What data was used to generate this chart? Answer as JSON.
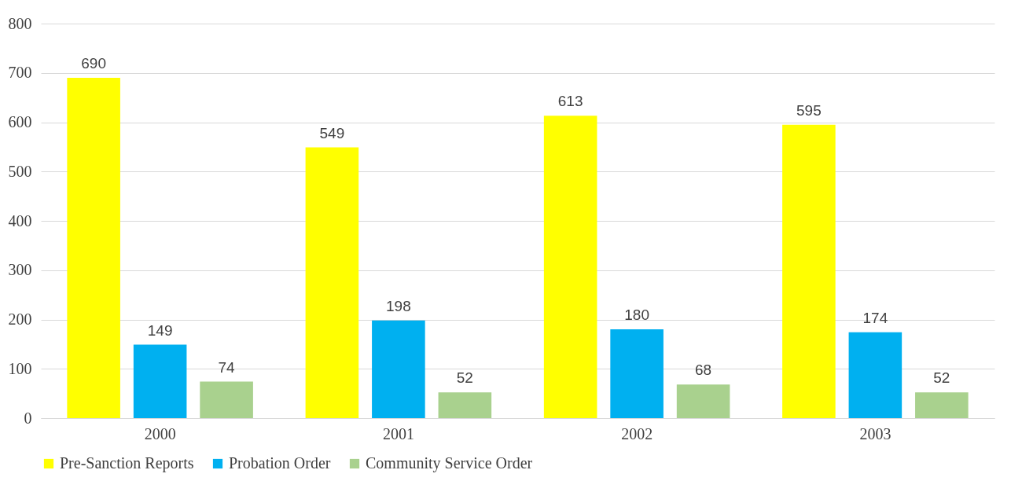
{
  "chart_data": {
    "type": "bar",
    "categories": [
      "2000",
      "2001",
      "2002",
      "2003"
    ],
    "series": [
      {
        "name": "Pre-Sanction Reports",
        "color": "#ffff00",
        "values": [
          690,
          549,
          613,
          595
        ]
      },
      {
        "name": "Probation Order",
        "color": "#00b0f0",
        "values": [
          149,
          198,
          180,
          174
        ]
      },
      {
        "name": "Community Service Order",
        "color": "#a9d18e",
        "values": [
          74,
          52,
          68,
          52
        ]
      }
    ],
    "ylim": [
      0,
      800
    ],
    "yticks": [
      0,
      100,
      200,
      300,
      400,
      500,
      600,
      700,
      800
    ],
    "grid": "y",
    "legend": "bottom",
    "data_labels": true
  }
}
